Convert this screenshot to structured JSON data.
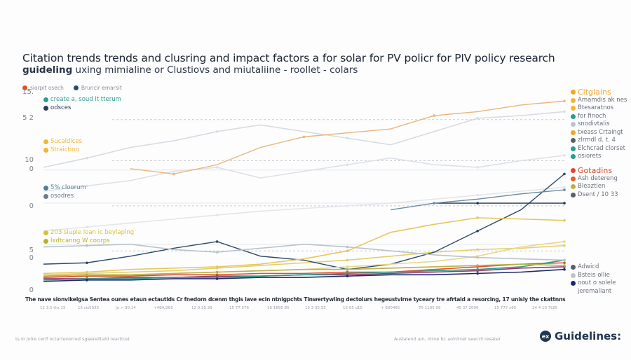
{
  "title": "Citation trends trends  and clusring and impact factors a for solar for PV policr for PIV policy research",
  "subtitle_bold": "guideling",
  "subtitle_rest": " uxing mimialine or Clustiovs and miutaliine -  roollet - colars",
  "top_legend": [
    {
      "label": "siorpit osech",
      "color": "#e0502a"
    },
    {
      "label": "Bruncir emarsit",
      "color": "#1f4f72"
    }
  ],
  "inner_legends": [
    {
      "items": [
        {
          "label": "create  a,  soud it  tterum",
          "color": "#2a9d8f"
        },
        {
          "label": "odsces",
          "color": "#2d3b55"
        }
      ]
    },
    {
      "items": [
        {
          "label": "Sucaldices",
          "color": "#f2b632"
        },
        {
          "label": "Straiction",
          "color": "#f2b632"
        }
      ]
    },
    {
      "items": [
        {
          "label": "5% cloorum",
          "color": "#4f7f95"
        },
        {
          "label": "osodres",
          "color": "#6b7a90"
        }
      ]
    },
    {
      "items": [
        {
          "label": "203 siuple loan ic beylaplng",
          "color": "#d4c23a"
        },
        {
          "label": "Ixdtcanng W coorps",
          "color": "#b9b31f"
        }
      ]
    }
  ],
  "right_legends": [
    {
      "items": [
        {
          "label": "Citglains",
          "color": "#f2a623"
        },
        {
          "label": "Amamdis ak nes",
          "color": "#f2b632"
        },
        {
          "label": "Btesaratnos",
          "color": "#f2b632"
        },
        {
          "label": "for finoch",
          "color": "#2a9d8f"
        },
        {
          "label": "snodivtalis",
          "color": "#c0c4ca"
        },
        {
          "label": "txeass Crtaingt",
          "color": "#f2a623"
        },
        {
          "label": "zlrmdl d. t. 4",
          "color": "#5a5f66"
        },
        {
          "label": "Elchcrad clorset",
          "color": "#2a9d8f"
        },
        {
          "label": "osiorets",
          "color": "#2a9d8f"
        }
      ]
    },
    {
      "items": [
        {
          "label": "Gotadins",
          "color": "#d9482b"
        },
        {
          "label": "Ash detereng",
          "color": "#e0602a"
        },
        {
          "label": "Bleaztien",
          "color": "#b8b04a"
        },
        {
          "label": "Dsent / 10 33",
          "color": "#5a5f66"
        }
      ]
    },
    {
      "items": [
        {
          "label": "Adwicd",
          "color": "#5a5f66"
        },
        {
          "label": "Bsteis ollie",
          "color": "#c0c4ca"
        },
        {
          "label": "oout o solele",
          "color": "#1f2a6b"
        },
        {
          "label": "jeremaliant",
          "color": ""
        }
      ]
    }
  ],
  "caption": "The nave sionvikelgsa Sentea ounes etaun ectautids Cr fnedorn dcenm thgis lave ecin ntnigpchts  Tinwertywling dectoiurs hegeustvirne  tyceary tre afrtald a resorcing, 17 unisly the ckattnns",
  "footer_left": "ts io jolre cerlf octartenorred sgeerelltald rearticet",
  "footer_right": "Auslalend ain, olrne bc aolnlinel seecril resater",
  "brand": {
    "logo": "ex",
    "name": "Guidelines:"
  },
  "chart_data": {
    "type": "line",
    "title": "Citation trends trends  and clusring and impact factors a for solar for PV policr for PIV policy research",
    "ylim": [
      0,
      15
    ],
    "y_ticks": [
      "15.",
      "5 2",
      "10",
      "0",
      "0",
      "5",
      "0",
      "0"
    ],
    "grid": "dashed horizontal",
    "x_ticks": [
      "12 3.5 ths 15",
      "15 cis5035",
      "Jo > 30.14",
      "+48A/265",
      "12 0.35.39",
      "15 77 576",
      "16 1856 85",
      "15 3 35.55",
      "15 05 d15",
      "+ 600465",
      "75 1105 09",
      "45 37 2000",
      "15 777 x65",
      "14 4 10 7L85"
    ],
    "legend": "right",
    "series": [
      {
        "color": "#e9b67a",
        "values": [
          null,
          null,
          9.2,
          8.8,
          9.5,
          10.8,
          11.6,
          11.9,
          12.2,
          13.2,
          13.5,
          14.0,
          14.3
        ]
      },
      {
        "color": "#2d4a66",
        "values": [
          2.0,
          2.1,
          2.6,
          3.2,
          3.7,
          2.6,
          2.3,
          1.6,
          2.0,
          2.9,
          4.5,
          6.1,
          8.8
        ]
      },
      {
        "color": "#1f3550",
        "values": [
          null,
          null,
          null,
          null,
          null,
          null,
          null,
          null,
          null,
          6.6,
          6.6,
          6.6,
          6.6
        ]
      },
      {
        "color": "#6f8aa0",
        "values": [
          null,
          null,
          null,
          null,
          null,
          null,
          null,
          null,
          6.1,
          6.6,
          6.9,
          7.3,
          7.6
        ]
      },
      {
        "color": "#e6c85a",
        "values": [
          1.3,
          1.4,
          1.6,
          1.7,
          1.8,
          2.0,
          2.4,
          3.0,
          4.4,
          5.0,
          5.5,
          5.4,
          5.3
        ]
      },
      {
        "color": "#e3cf6a",
        "values": [
          1.2,
          1.3,
          1.4,
          1.5,
          1.7,
          1.9,
          2.1,
          2.3,
          2.6,
          2.9,
          3.1,
          3.2,
          3.4
        ]
      },
      {
        "color": "#e8d88a",
        "values": [
          1.0,
          1.1,
          1.2,
          1.3,
          1.4,
          1.5,
          1.6,
          1.8,
          2.0,
          2.2,
          2.6,
          3.3,
          3.7
        ]
      },
      {
        "color": "#e0502a",
        "values": [
          1.0,
          1.1,
          1.1,
          1.2,
          1.2,
          1.3,
          1.3,
          1.4,
          1.4,
          1.6,
          1.8,
          2.0,
          2.1
        ]
      },
      {
        "color": "#9b3a6a",
        "values": [
          0.9,
          0.9,
          1.0,
          1.0,
          1.1,
          1.1,
          1.2,
          1.2,
          1.3,
          1.4,
          1.5,
          1.7,
          1.8
        ]
      },
      {
        "color": "#2a9d8f",
        "values": [
          0.8,
          0.9,
          0.9,
          1.0,
          1.0,
          1.1,
          1.2,
          1.3,
          1.4,
          1.5,
          1.6,
          1.8,
          2.3
        ]
      },
      {
        "color": "#b8b04a",
        "values": [
          1.1,
          1.2,
          1.2,
          1.3,
          1.4,
          1.5,
          1.6,
          1.6,
          1.7,
          1.8,
          1.9,
          2.0,
          1.9
        ]
      },
      {
        "color": "#1f2a6b",
        "values": [
          0.7,
          0.8,
          0.8,
          0.9,
          0.9,
          1.0,
          1.0,
          1.1,
          1.2,
          1.2,
          1.3,
          1.4,
          1.6
        ]
      },
      {
        "color": "#d7dce2",
        "values": [
          9.3,
          10.0,
          10.8,
          11.3,
          12.0,
          12.5,
          12.0,
          11.5,
          11.0,
          12.0,
          13.0,
          13.2,
          13.5
        ]
      },
      {
        "color": "#dde1e6",
        "values": [
          7.5,
          7.9,
          8.3,
          9.0,
          9.3,
          8.5,
          9.0,
          9.5,
          10.0,
          9.5,
          9.3,
          9.8,
          10.2
        ]
      },
      {
        "color": "#e3e6ea",
        "values": [
          4.5,
          4.8,
          5.1,
          5.4,
          5.7,
          6.0,
          6.2,
          6.4,
          6.6,
          6.9,
          7.2,
          7.5,
          7.8
        ]
      },
      {
        "color": "#b9c3cc",
        "values": [
          3.3,
          3.4,
          3.5,
          3.1,
          2.9,
          3.2,
          3.5,
          3.3,
          3.0,
          2.7,
          2.5,
          2.4,
          2.3
        ]
      }
    ]
  }
}
